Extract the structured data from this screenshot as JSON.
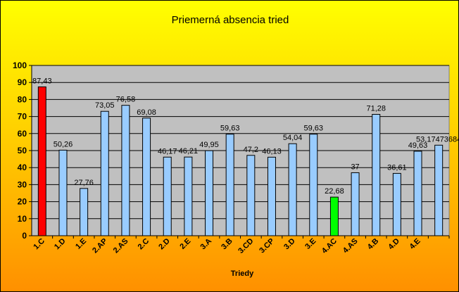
{
  "chart_data": {
    "type": "bar",
    "title": "Priemerná absencia tried",
    "xlabel": "Triedy",
    "ylabel": "",
    "ylim": [
      0,
      100
    ],
    "yticks": [
      0,
      10,
      20,
      30,
      40,
      50,
      60,
      70,
      80,
      90,
      100
    ],
    "grid": true,
    "legend": "none",
    "plot_background": "#c0c0c0",
    "categories": [
      "1.C",
      "1.D",
      "1.E",
      "2.AP",
      "2.AS",
      "2.C",
      "2.D",
      "2.E",
      "3.A",
      "3.B",
      "3.CD",
      "3.CP",
      "3.D",
      "3.E",
      "4.AC",
      "4.AS",
      "4.B",
      "4.D",
      "4.E",
      ""
    ],
    "values": [
      87.43,
      50.26,
      27.76,
      73.05,
      76.58,
      69.08,
      46.17,
      46.21,
      49.95,
      59.63,
      47.2,
      46.13,
      54.04,
      59.63,
      22.68,
      37,
      71.28,
      36.61,
      49.63,
      53.17473684
    ],
    "data_labels": [
      "87,43",
      "50,26",
      "27,76",
      "73,05",
      "76,58",
      "69,08",
      "46,17",
      "46,21",
      "49,95",
      "59,63",
      "47,2",
      "46,13",
      "54,04",
      "59,63",
      "22,68",
      "37",
      "71,28",
      "36,61",
      "49,63",
      "53,17473684"
    ],
    "colors": [
      "#ff0000",
      "#99ccff",
      "#99ccff",
      "#99ccff",
      "#99ccff",
      "#99ccff",
      "#99ccff",
      "#99ccff",
      "#99ccff",
      "#99ccff",
      "#99ccff",
      "#99ccff",
      "#99ccff",
      "#99ccff",
      "#00ff00",
      "#99ccff",
      "#99ccff",
      "#99ccff",
      "#99ccff",
      "#99ccff"
    ]
  }
}
